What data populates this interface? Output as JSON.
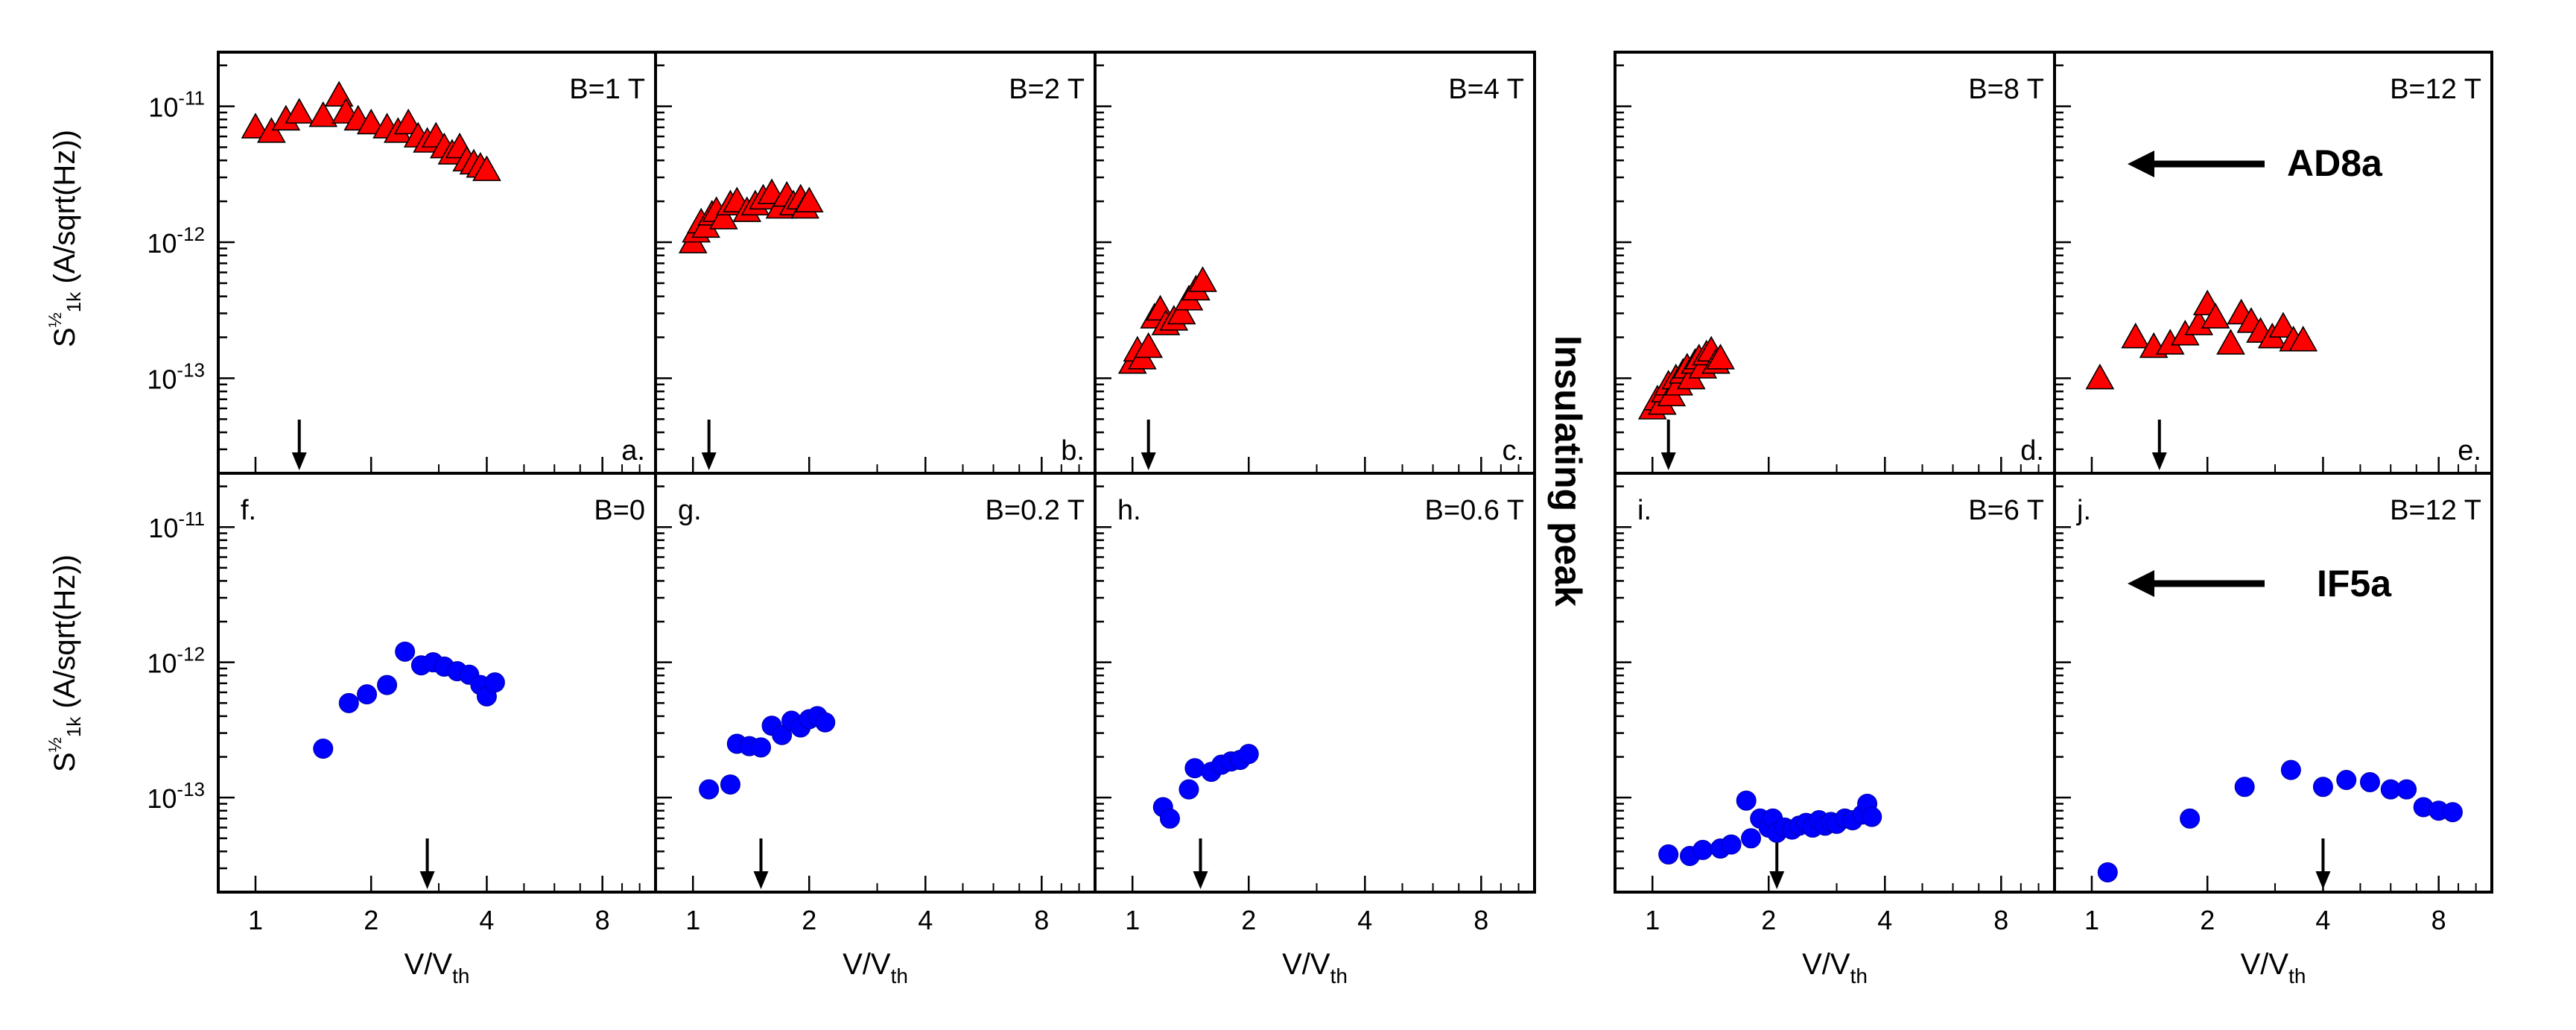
{
  "figure": {
    "side_label": "Insulating peak",
    "sample_labels": [
      "AD8a",
      "IF5a"
    ]
  },
  "chart_data": [
    {
      "type": "scatter",
      "panel": "a.",
      "row": "top",
      "field": "B=1 T",
      "sample": "AD8a",
      "xlabel": "V/V",
      "xlabel_sub": "th",
      "ylabel": "S",
      "ylabel_sup": "½",
      "ylabel_sub": "1k",
      "ylabel_unit": " (A/sqrt(Hz))",
      "xlim": [
        0.8,
        11
      ],
      "ylim": [
        2e-14,
        2.5e-11
      ],
      "marker": "triangle",
      "color": "#ff0000",
      "arrow_x": 1.3,
      "x": [
        1.0,
        1.1,
        1.2,
        1.3,
        1.5,
        1.65,
        1.72,
        1.85,
        2.0,
        2.2,
        2.35,
        2.5,
        2.65,
        2.8,
        2.95,
        3.1,
        3.25,
        3.4,
        3.55,
        3.7,
        3.85,
        4.0
      ],
      "y": [
        7e-12,
        6.5e-12,
        8e-12,
        9e-12,
        8.5e-12,
        1.2e-11,
        9e-12,
        8e-12,
        7.5e-12,
        7e-12,
        6.5e-12,
        7.5e-12,
        6e-12,
        5.5e-12,
        6e-12,
        5e-12,
        4.5e-12,
        5e-12,
        4e-12,
        3.8e-12,
        3.6e-12,
        3.4e-12
      ]
    },
    {
      "type": "scatter",
      "panel": "b.",
      "row": "top",
      "field": "B=2 T",
      "sample": "AD8a",
      "xlabel": "V/V",
      "xlabel_sub": "th",
      "xlim": [
        0.8,
        11
      ],
      "ylim": [
        2e-14,
        2.5e-11
      ],
      "marker": "triangle",
      "color": "#ff0000",
      "arrow_x": 1.1,
      "x": [
        1.0,
        1.02,
        1.05,
        1.08,
        1.12,
        1.15,
        1.2,
        1.25,
        1.3,
        1.38,
        1.45,
        1.52,
        1.6,
        1.68,
        1.75,
        1.82,
        1.9,
        1.95,
        2.0
      ],
      "y": [
        1e-12,
        1.2e-12,
        1.4e-12,
        1.3e-12,
        1.6e-12,
        1.7e-12,
        1.5e-12,
        1.9e-12,
        2e-12,
        1.7e-12,
        1.9e-12,
        2.1e-12,
        2.3e-12,
        1.8e-12,
        2.2e-12,
        1.9e-12,
        2.1e-12,
        1.8e-12,
        2e-12
      ]
    },
    {
      "type": "scatter",
      "panel": "c.",
      "row": "top",
      "field": "B=4 T",
      "sample": "AD8a",
      "xlabel": "V/V",
      "xlabel_sub": "th",
      "xlim": [
        0.8,
        11
      ],
      "ylim": [
        2e-14,
        2.5e-11
      ],
      "marker": "triangle",
      "color": "#ff0000",
      "arrow_x": 1.1,
      "x": [
        1.0,
        1.03,
        1.06,
        1.1,
        1.14,
        1.18,
        1.22,
        1.28,
        1.34,
        1.4,
        1.46,
        1.52
      ],
      "y": [
        1.3e-13,
        1.6e-13,
        1.4e-13,
        1.7e-13,
        2.8e-13,
        3.2e-13,
        2.5e-13,
        2.7e-13,
        3e-13,
        3.8e-13,
        4.5e-13,
        5.2e-13
      ]
    },
    {
      "type": "scatter",
      "panel": "d.",
      "row": "top",
      "field": "B=8 T",
      "sample": "AD8a",
      "xlabel": "V/V",
      "xlabel_sub": "th",
      "xlim": [
        0.8,
        11
      ],
      "ylim": [
        2e-14,
        2.5e-11
      ],
      "marker": "triangle",
      "color": "#ff0000",
      "arrow_x": 1.1,
      "x": [
        1.0,
        1.03,
        1.06,
        1.08,
        1.1,
        1.12,
        1.15,
        1.17,
        1.2,
        1.23,
        1.26,
        1.29,
        1.32,
        1.35,
        1.38,
        1.42,
        1.46,
        1.5
      ],
      "y": [
        6e-14,
        7e-14,
        6.5e-14,
        8e-14,
        9e-14,
        7.5e-14,
        1e-13,
        9e-14,
        1.1e-13,
        1.2e-13,
        1e-13,
        1.3e-13,
        1.4e-13,
        1.2e-13,
        1.5e-13,
        1.6e-13,
        1.3e-13,
        1.4e-13
      ]
    },
    {
      "type": "scatter",
      "panel": "e.",
      "row": "top",
      "field": "B=12 T",
      "sample": "AD8a",
      "xlabel": "V/V",
      "xlabel_sub": "th",
      "xlim": [
        0.8,
        11
      ],
      "ylim": [
        2e-14,
        2.5e-11
      ],
      "marker": "triangle",
      "color": "#ff0000",
      "arrow_x": 1.5,
      "x": [
        1.05,
        1.3,
        1.45,
        1.6,
        1.75,
        1.9,
        2.0,
        2.1,
        2.3,
        2.45,
        2.6,
        2.75,
        2.95,
        3.15,
        3.35,
        3.55
      ],
      "y": [
        1e-13,
        2e-13,
        1.7e-13,
        1.8e-13,
        2.1e-13,
        2.5e-13,
        3.5e-13,
        2.8e-13,
        1.8e-13,
        3e-13,
        2.6e-13,
        2.2e-13,
        2e-13,
        2.4e-13,
        1.9e-13,
        1.9e-13
      ]
    },
    {
      "type": "scatter",
      "panel": "f.",
      "row": "bottom",
      "field": "B=0",
      "sample": "IF5a",
      "xlabel": "V/V",
      "xlabel_sub": "th",
      "xlim": [
        0.8,
        11
      ],
      "ylim": [
        2e-14,
        2.5e-11
      ],
      "marker": "circle",
      "color": "#0000ff",
      "arrow_x": 2.8,
      "x": [
        1.5,
        1.75,
        1.95,
        2.2,
        2.45,
        2.7,
        2.9,
        3.1,
        3.35,
        3.6,
        3.85,
        4.0,
        4.2
      ],
      "y": [
        2.3e-13,
        5e-13,
        5.8e-13,
        6.8e-13,
        1.2e-12,
        9.5e-13,
        1e-12,
        9.3e-13,
        8.6e-13,
        8.1e-13,
        6.8e-13,
        5.6e-13,
        7.1e-13
      ]
    },
    {
      "type": "scatter",
      "panel": "g.",
      "row": "bottom",
      "field": "B=0.2 T",
      "sample": "IF5a",
      "xlabel": "V/V",
      "xlabel_sub": "th",
      "xlim": [
        0.8,
        11
      ],
      "ylim": [
        2e-14,
        2.5e-11
      ],
      "marker": "circle",
      "color": "#0000ff",
      "arrow_x": 1.5,
      "x": [
        1.1,
        1.25,
        1.3,
        1.4,
        1.5,
        1.6,
        1.7,
        1.8,
        1.9,
        2.0,
        2.1,
        2.2
      ],
      "y": [
        1.15e-13,
        1.25e-13,
        2.5e-13,
        2.4e-13,
        2.35e-13,
        3.4e-13,
        2.9e-13,
        3.7e-13,
        3.3e-13,
        3.8e-13,
        4e-13,
        3.6e-13
      ]
    },
    {
      "type": "scatter",
      "panel": "h.",
      "row": "bottom",
      "field": "B=0.6 T",
      "sample": "IF5a",
      "xlabel": "V/V",
      "xlabel_sub": "th",
      "xlim": [
        0.8,
        11
      ],
      "ylim": [
        2e-14,
        2.5e-11
      ],
      "marker": "circle",
      "color": "#0000ff",
      "arrow_x": 1.5,
      "x": [
        1.2,
        1.25,
        1.4,
        1.45,
        1.6,
        1.7,
        1.8,
        1.9,
        2.0
      ],
      "y": [
        8.5e-14,
        7e-14,
        1.15e-13,
        1.65e-13,
        1.55e-13,
        1.75e-13,
        1.85e-13,
        1.9e-13,
        2.1e-13
      ]
    },
    {
      "type": "scatter",
      "panel": "i.",
      "row": "bottom",
      "field": "B=6 T",
      "sample": "IF5a",
      "xlabel": "V/V",
      "xlabel_sub": "th",
      "xlim": [
        0.8,
        11
      ],
      "ylim": [
        2e-14,
        2.5e-11
      ],
      "marker": "circle",
      "color": "#0000ff",
      "arrow_x": 2.1,
      "x": [
        1.1,
        1.25,
        1.35,
        1.5,
        1.6,
        1.75,
        1.8,
        1.9,
        2.0,
        2.05,
        2.1,
        2.2,
        2.3,
        2.4,
        2.5,
        2.6,
        2.7,
        2.8,
        2.9,
        3.0,
        3.15,
        3.3,
        3.5,
        3.6,
        3.7
      ],
      "y": [
        3.8e-14,
        3.7e-14,
        4.1e-14,
        4.2e-14,
        4.5e-14,
        9.5e-14,
        5e-14,
        7e-14,
        6e-14,
        7e-14,
        5.5e-14,
        6e-14,
        5.8e-14,
        6.2e-14,
        6.5e-14,
        6e-14,
        6.8e-14,
        6.2e-14,
        6.6e-14,
        6.4e-14,
        7e-14,
        6.8e-14,
        7.5e-14,
        9e-14,
        7.2e-14
      ]
    },
    {
      "type": "scatter",
      "panel": "j.",
      "row": "bottom",
      "field": "B=12 T",
      "sample": "IF5a",
      "xlabel": "V/V",
      "xlabel_sub": "th",
      "xlim": [
        0.8,
        11
      ],
      "ylim": [
        2e-14,
        2.5e-11
      ],
      "marker": "circle",
      "color": "#0000ff",
      "arrow_x": 4.0,
      "x": [
        1.1,
        1.8,
        2.5,
        3.3,
        4.0,
        4.6,
        5.3,
        6.0,
        6.6,
        7.3,
        8.0,
        8.7
      ],
      "y": [
        2.8e-14,
        7e-14,
        1.2e-13,
        1.6e-13,
        1.2e-13,
        1.35e-13,
        1.3e-13,
        1.15e-13,
        1.15e-13,
        8.5e-14,
        8e-14,
        7.8e-14
      ]
    }
  ]
}
